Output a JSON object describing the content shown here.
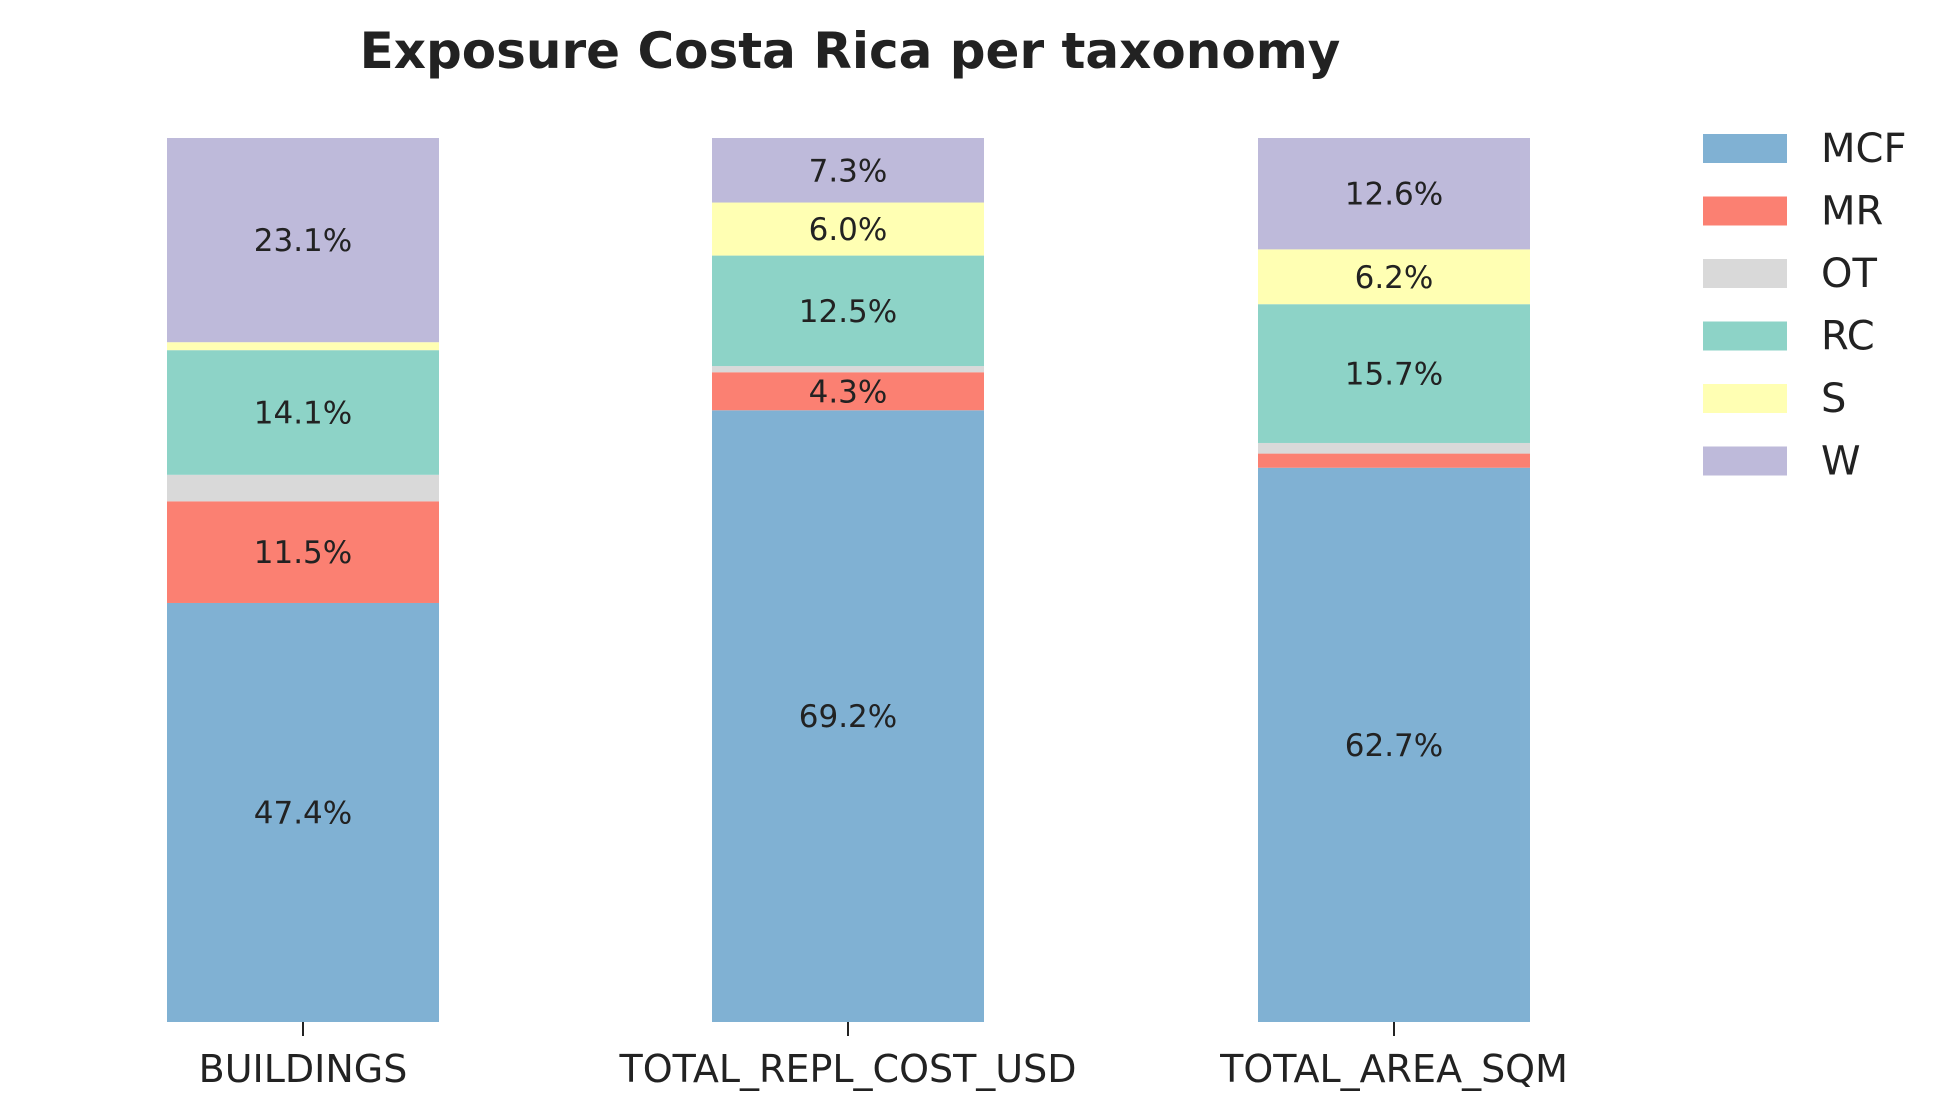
{
  "chart_data": {
    "type": "bar",
    "stacked": true,
    "normalized": true,
    "title": "Exposure Costa Rica per taxonomy",
    "xlabel": "",
    "ylabel": "",
    "ylim": [
      0,
      100
    ],
    "grid": false,
    "legend_position": "top-right",
    "categories": [
      "BUILDINGS",
      "TOTAL_REPL_COST_USD",
      "TOTAL_AREA_SQM"
    ],
    "series": [
      {
        "name": "MCF",
        "color": "#80b1d3",
        "values": [
          47.4,
          69.2,
          62.7
        ],
        "labels": [
          "47.4%",
          "69.2%",
          "62.7%"
        ]
      },
      {
        "name": "MR",
        "color": "#fb8072",
        "values": [
          11.5,
          4.3,
          1.6
        ],
        "labels": [
          "11.5%",
          "4.3%",
          ""
        ]
      },
      {
        "name": "OT",
        "color": "#d9d9d9",
        "values": [
          3.0,
          0.7,
          1.2
        ],
        "labels": [
          "",
          "",
          ""
        ]
      },
      {
        "name": "RC",
        "color": "#8dd3c7",
        "values": [
          14.1,
          12.5,
          15.7
        ],
        "labels": [
          "14.1%",
          "12.5%",
          "15.7%"
        ]
      },
      {
        "name": "S",
        "color": "#ffffb3",
        "values": [
          0.9,
          6.0,
          6.2
        ],
        "labels": [
          "",
          "6.0%",
          "6.2%"
        ]
      },
      {
        "name": "W",
        "color": "#bebada",
        "values": [
          23.1,
          7.3,
          12.6
        ],
        "labels": [
          "23.1%",
          "7.3%",
          "12.6%"
        ]
      }
    ]
  }
}
